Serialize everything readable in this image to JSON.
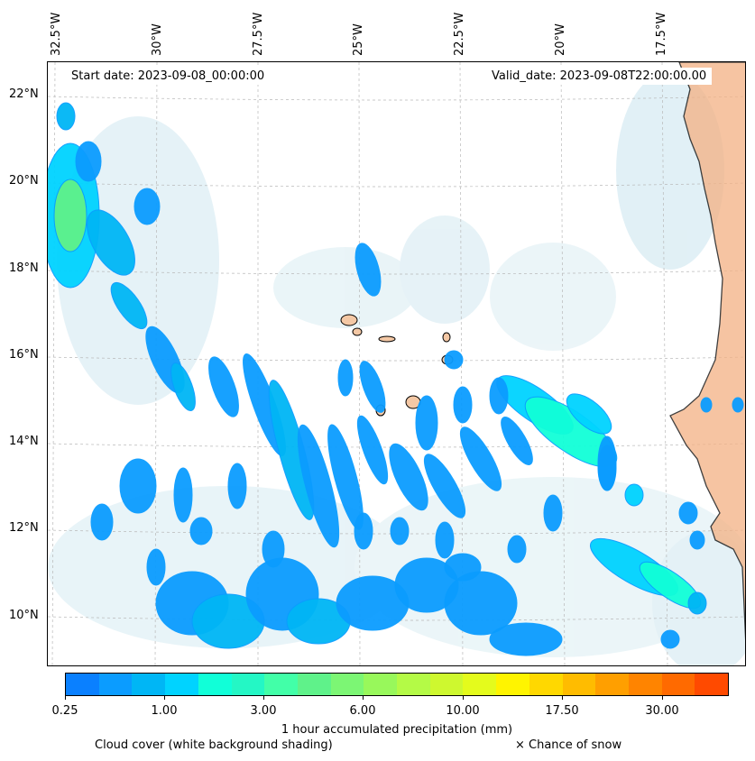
{
  "map": {
    "start_date": "Start date: 2023-09-08_00:00:00",
    "valid_date": "Valid_date: 2023-09-08T22:00:00.00",
    "lon_labels": [
      "32.5°W",
      "30°W",
      "27.5°W",
      "25°W",
      "22.5°W",
      "20°W",
      "17.5°W"
    ],
    "lat_labels": [
      "22°N",
      "20°N",
      "18°N",
      "16°N",
      "14°N",
      "12°N",
      "10°N"
    ],
    "land_color": "#f4b183",
    "coast_color": "#000000",
    "cloud_color": "#bfe0ea",
    "grid": "dotted"
  },
  "colorbar": {
    "label": "1 hour accumulated precipitation (mm)",
    "tick_labels": [
      "0.25",
      "1.00",
      "3.00",
      "6.00",
      "10.00",
      "17.50",
      "30.00"
    ],
    "colors": [
      "#0a80ff",
      "#0b9cff",
      "#00b6f5",
      "#00d3ff",
      "#11ffd8",
      "#24f7c5",
      "#42ffa8",
      "#5ff28a",
      "#7cf674",
      "#98f85b",
      "#b4fa46",
      "#cef82f",
      "#e4fb1c",
      "#fff400",
      "#ffd800",
      "#ffbc00",
      "#ff9f00",
      "#ff8400",
      "#ff6a00",
      "#ff4a00"
    ]
  },
  "legend": {
    "cloud_note": "Cloud cover (white background shading)",
    "snow_note": "× Chance of snow"
  }
}
